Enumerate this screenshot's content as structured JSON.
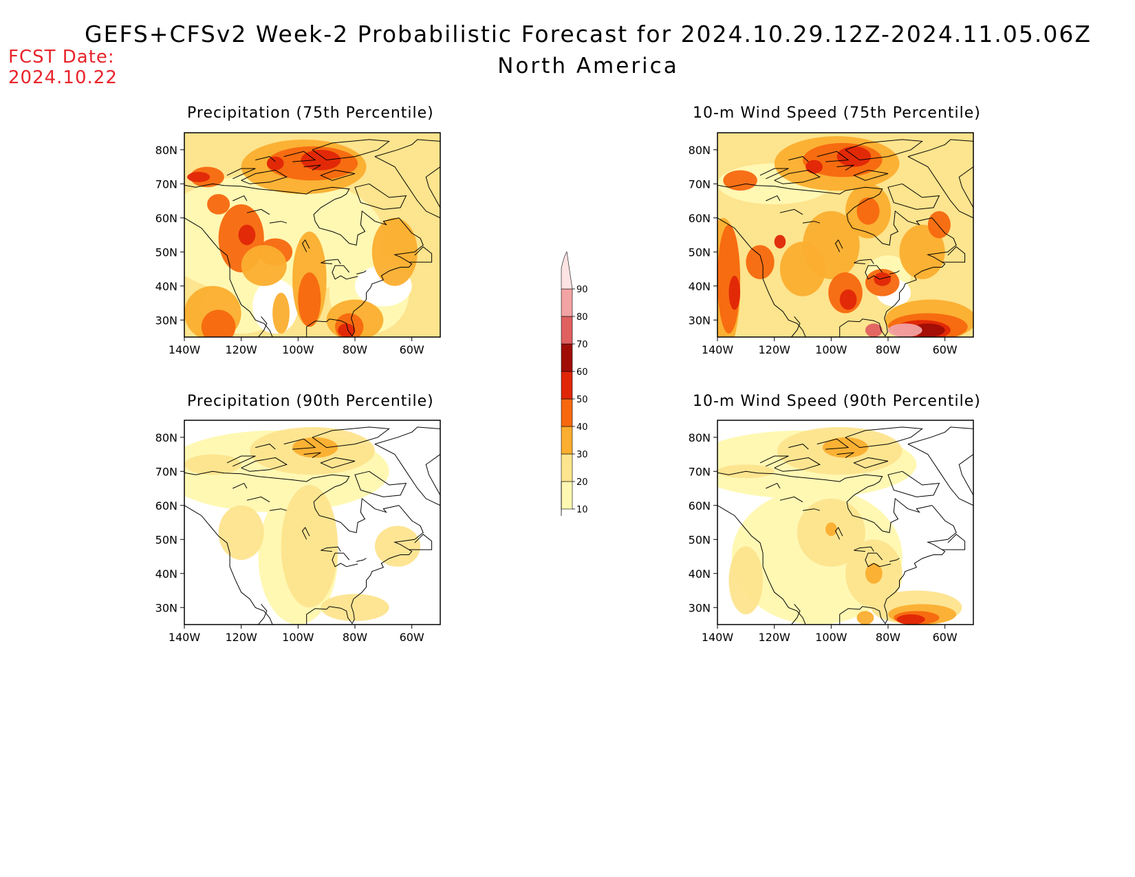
{
  "header": {
    "title": "GEFS+CFSv2 Week-2 Probabilistic Forecast for 2024.10.29.12Z-2024.11.05.06Z",
    "subtitle": "North America",
    "fcst_label": "FCST Date:",
    "fcst_date": "2024.10.22"
  },
  "panels": [
    {
      "title": "Precipitation (75th Percentile)",
      "variable": "precipitation",
      "percentile": 75
    },
    {
      "title": "10-m Wind Speed (75th Percentile)",
      "variable": "wind",
      "percentile": 75
    },
    {
      "title": "Precipitation (90th Percentile)",
      "variable": "precipitation",
      "percentile": 90
    },
    {
      "title": "10-m Wind Speed (90th Percentile)",
      "variable": "wind",
      "percentile": 90
    }
  ],
  "axes": {
    "lat_ticks": [
      "80N",
      "70N",
      "60N",
      "50N",
      "40N",
      "30N"
    ],
    "lon_ticks": [
      "140W",
      "120W",
      "100W",
      "80W",
      "60W"
    ]
  },
  "colorbar": {
    "levels": [
      "10",
      "20",
      "30",
      "40",
      "50",
      "60",
      "70",
      "80",
      "90"
    ],
    "colors": [
      "#fff8b3",
      "#fde48e",
      "#fbae2f",
      "#f7680f",
      "#e02607",
      "#a00d06",
      "#e06060",
      "#f2a3a3",
      "#fde3e3"
    ]
  }
}
